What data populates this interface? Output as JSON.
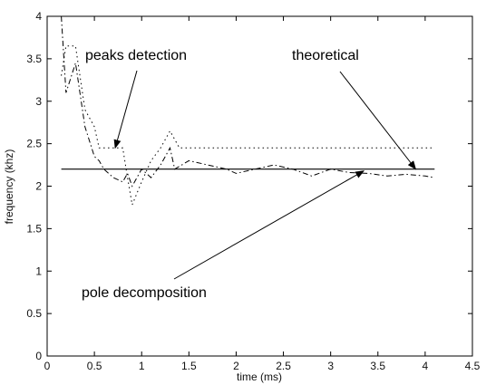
{
  "chart_data": {
    "type": "line",
    "title": "",
    "xlabel": "time (ms)",
    "ylabel": "frequency (khz)",
    "xlim": [
      0,
      4.5
    ],
    "ylim": [
      0,
      4
    ],
    "xticks": [
      0,
      0.5,
      1,
      1.5,
      2,
      2.5,
      3,
      3.5,
      4,
      4.5
    ],
    "yticks": [
      0,
      0.5,
      1,
      1.5,
      2,
      2.5,
      3,
      3.5,
      4
    ],
    "xtick_labels": [
      "0",
      "0.5",
      "1",
      "1.5",
      "2",
      "2.5",
      "3",
      "3.5",
      "4",
      "4.5"
    ],
    "ytick_labels": [
      "0",
      "0.5",
      "1",
      "1.5",
      "2",
      "2.5",
      "3",
      "3.5",
      "4"
    ],
    "grid": false,
    "series": [
      {
        "style": "dotted",
        "x": [
          0.15,
          0.2,
          0.3,
          0.4,
          0.5,
          0.55,
          0.6,
          0.7,
          0.8,
          0.85,
          0.9,
          1.0,
          1.1,
          1.2,
          1.3,
          1.4,
          1.5,
          4.1
        ],
        "y": [
          3.3,
          3.65,
          3.65,
          2.9,
          2.7,
          2.45,
          2.45,
          2.45,
          2.45,
          2.1,
          1.78,
          2.05,
          2.3,
          2.45,
          2.65,
          2.45,
          2.45,
          2.45
        ]
      },
      {
        "style": "solid",
        "x": [
          0.15,
          4.1
        ],
        "y": [
          2.2,
          2.2
        ]
      },
      {
        "style": "dash-dot",
        "x": [
          0.15,
          0.2,
          0.3,
          0.4,
          0.5,
          0.55,
          0.6,
          0.7,
          0.8,
          0.85,
          0.9,
          1.0,
          1.1,
          1.2,
          1.3,
          1.35,
          1.5,
          1.7,
          1.9,
          2.0,
          2.2,
          2.4,
          2.6,
          2.8,
          3.0,
          3.2,
          3.4,
          3.6,
          3.8,
          4.0,
          4.1
        ],
        "y": [
          4.0,
          3.1,
          3.45,
          2.7,
          2.35,
          2.3,
          2.2,
          2.1,
          2.05,
          2.15,
          2.0,
          2.2,
          2.1,
          2.25,
          2.45,
          2.2,
          2.3,
          2.25,
          2.2,
          2.15,
          2.2,
          2.25,
          2.2,
          2.12,
          2.2,
          2.16,
          2.15,
          2.12,
          2.14,
          2.12,
          2.1
        ]
      }
    ],
    "annotations": [
      {
        "text": "peaks detection",
        "target": [
          0.72,
          2.45
        ]
      },
      {
        "text": "theoretical",
        "target": [
          3.9,
          2.2
        ]
      },
      {
        "text": "pole decomposition",
        "target": [
          3.35,
          2.18
        ]
      }
    ]
  }
}
